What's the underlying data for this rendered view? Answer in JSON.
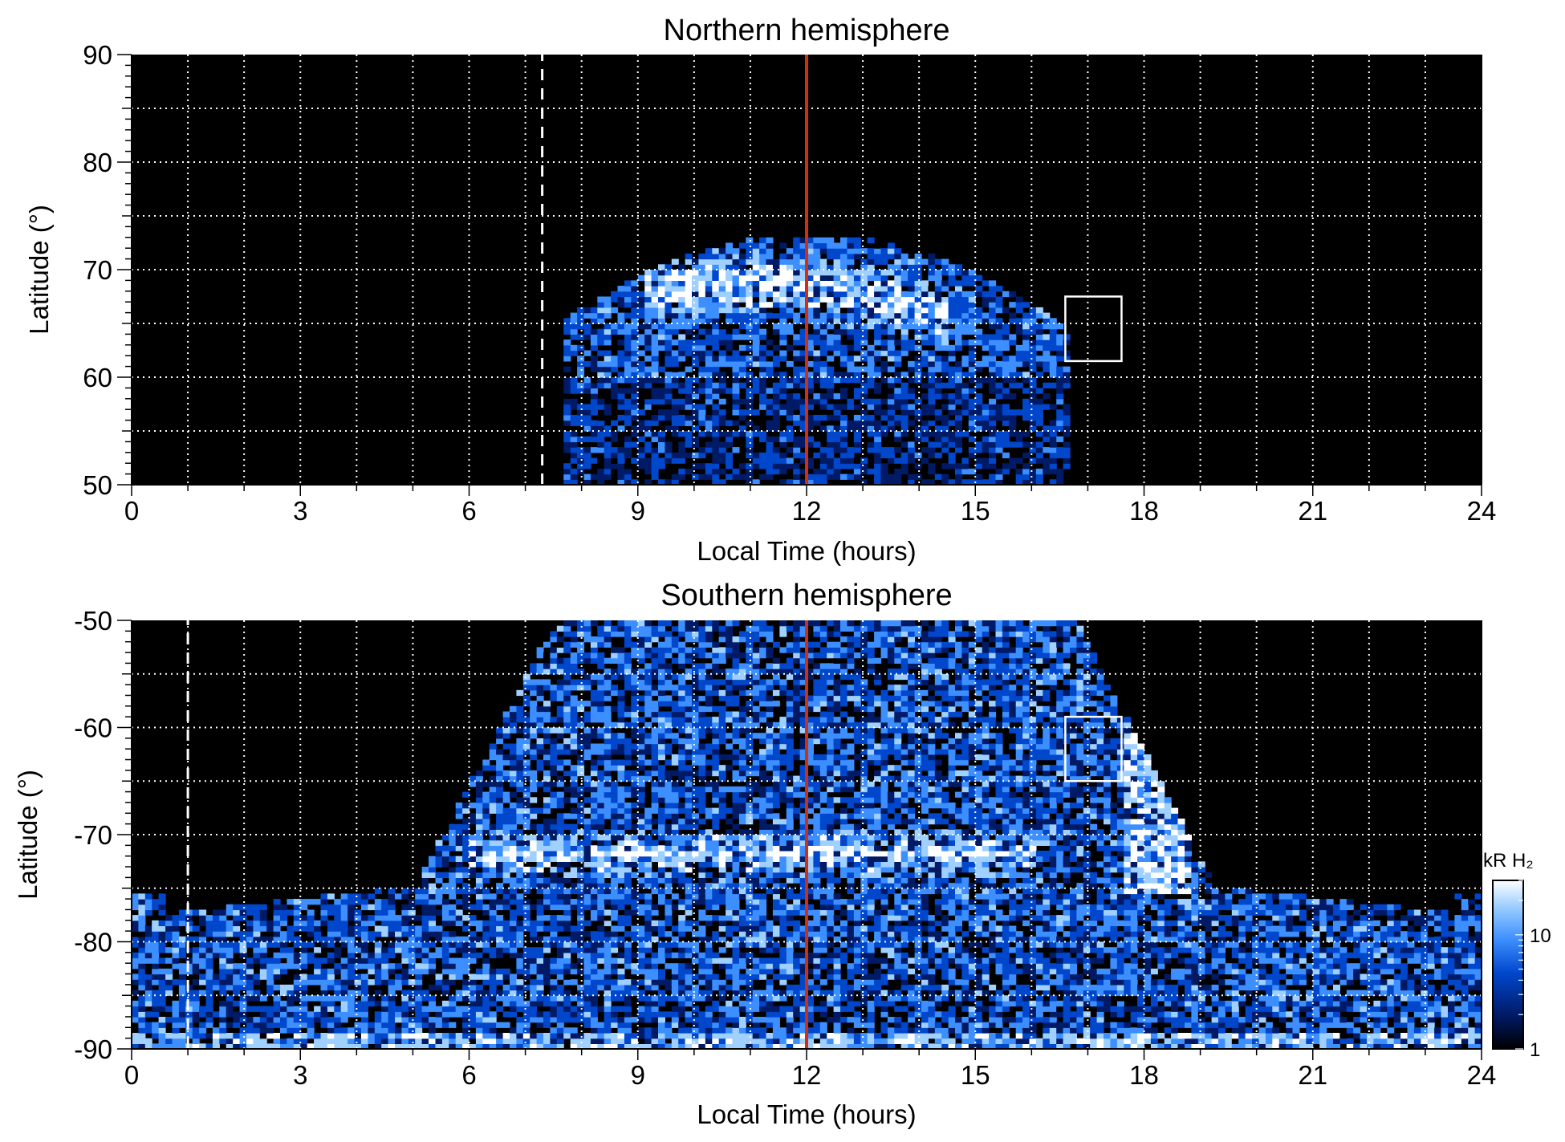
{
  "chart_data": [
    {
      "type": "heatmap",
      "title": "Northern hemisphere",
      "xlabel": "Local Time (hours)",
      "ylabel": "Latitude (°)",
      "xlim": [
        0,
        24
      ],
      "ylim": [
        50,
        90
      ],
      "xticks": [
        "0",
        "3",
        "6",
        "9",
        "12",
        "15",
        "18",
        "21",
        "24"
      ],
      "yticks": [
        "50",
        "60",
        "70",
        "80",
        "90"
      ],
      "grid": true,
      "background": "#000000",
      "colormap": [
        "#000000",
        "#001a66",
        "#0047cc",
        "#3d8fff",
        "#9fd0ff",
        "#ffffff"
      ],
      "noon_line_lt": 12,
      "noon_line_color": "#d03010",
      "dashed_line_lt": 7.3,
      "dashed_line_range": [
        50,
        90
      ],
      "box": {
        "lt": [
          16.6,
          17.6
        ],
        "lat": [
          61.5,
          67.5
        ]
      },
      "coverage": "dayside emission cap from ~7.8 h to ~16.5 h LT, extending up to ~73° latitude at noon",
      "bright_oval_lat": [
        62,
        71
      ]
    },
    {
      "type": "heatmap",
      "title": "Southern hemisphere",
      "xlabel": "Local Time (hours)",
      "ylabel": "Latitude (°)",
      "xlim": [
        0,
        24
      ],
      "ylim": [
        -90,
        -50
      ],
      "xticks": [
        "0",
        "3",
        "6",
        "9",
        "12",
        "15",
        "18",
        "21",
        "24"
      ],
      "yticks": [
        "-90",
        "-80",
        "-70",
        "-60",
        "-50"
      ],
      "grid": true,
      "background": "#000000",
      "colormap": [
        "#000000",
        "#001a66",
        "#0047cc",
        "#3d8fff",
        "#9fd0ff",
        "#ffffff"
      ],
      "noon_line_lt": 12,
      "noon_line_color": "#d03010",
      "dashed_line_lt": 1.0,
      "dashed_line_range": [
        -90,
        -50
      ],
      "box": {
        "lt": [
          16.6,
          17.6
        ],
        "lat": [
          -65,
          -59
        ]
      },
      "coverage": "emission across nearly all local times poleward of ~-75°, filling -50° to -90° between ~5 h and ~19 h LT",
      "bright_oval_lat": [
        -74,
        -70
      ],
      "colorbar": {
        "label": "kR H₂",
        "ticks": [
          "1",
          "10"
        ],
        "scale": "log",
        "range": [
          1,
          30
        ]
      }
    }
  ]
}
